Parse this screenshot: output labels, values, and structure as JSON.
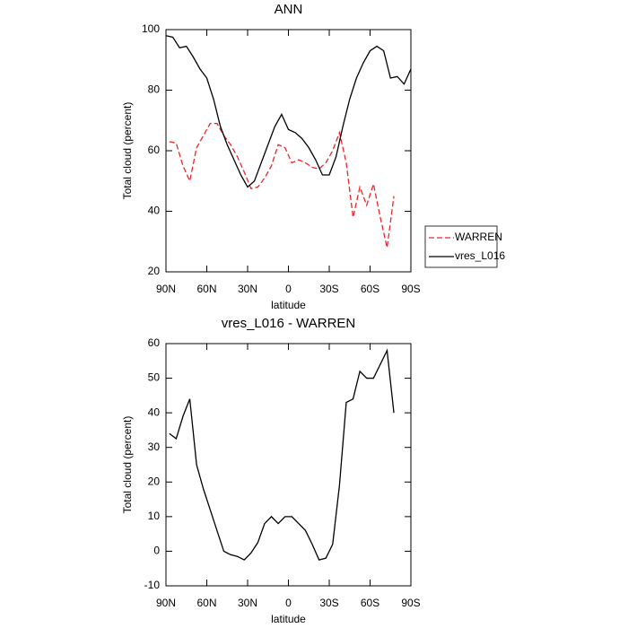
{
  "chart_data": [
    {
      "type": "line",
      "title": "ANN",
      "x_label": "latitude",
      "y_label": "Total cloud (percent)",
      "xlim": [
        90,
        -90
      ],
      "xticks": [
        {
          "value": 90,
          "label": "90N"
        },
        {
          "value": 60,
          "label": "60N"
        },
        {
          "value": 30,
          "label": "30N"
        },
        0,
        {
          "value": -30,
          "label": "30S"
        },
        {
          "value": -60,
          "label": "60S"
        },
        {
          "value": -90,
          "label": "90S"
        }
      ],
      "ylim": [
        20,
        100
      ],
      "yticks": [
        20,
        40,
        60,
        80,
        100
      ],
      "legend": "outside-right",
      "series": [
        {
          "name": "WARREN",
          "color": "#e8262b",
          "style": "dashed",
          "x": [
            87.5,
            82.5,
            77.5,
            72.5,
            67.5,
            62.5,
            57.5,
            52.5,
            47.5,
            42.5,
            37.5,
            32.5,
            27.5,
            22.5,
            17.5,
            12.5,
            7.5,
            2.5,
            -2.5,
            -7.5,
            -12.5,
            -17.5,
            -22.5,
            -27.5,
            -32.5,
            -37.5,
            -42.5,
            -47.5,
            -52.5,
            -57.5,
            -62.5,
            -67.5,
            -72.5,
            -77.5
          ],
          "values": [
            63,
            62.5,
            55,
            50,
            61,
            65,
            69,
            69,
            65,
            62,
            58,
            53,
            47.5,
            48,
            51,
            55,
            62,
            61,
            56,
            57,
            56,
            54.5,
            54,
            56,
            60,
            66,
            56,
            38,
            48,
            42,
            49,
            38,
            28,
            45
          ]
        },
        {
          "name": "vres_L016",
          "color": "#000000",
          "style": "solid",
          "x": [
            90,
            85,
            80,
            75,
            70,
            65,
            60,
            55,
            50,
            45,
            40,
            35,
            30,
            25,
            20,
            15,
            10,
            5,
            0,
            -5,
            -10,
            -15,
            -20,
            -25,
            -30,
            -35,
            -40,
            -45,
            -50,
            -55,
            -60,
            -65,
            -70,
            -75,
            -80,
            -85,
            -90
          ],
          "values": [
            98,
            97.5,
            94,
            94.5,
            91,
            87,
            84,
            77,
            68,
            62,
            57,
            52,
            48,
            50,
            56,
            62,
            68,
            72,
            67,
            66,
            64,
            61,
            57,
            52,
            52,
            58,
            68,
            77,
            84,
            89,
            93,
            94.5,
            93,
            84,
            84.5,
            82,
            87
          ]
        }
      ]
    },
    {
      "type": "line",
      "title": "vres_L016 - WARREN",
      "x_label": "latitude",
      "y_label": "Total cloud (percent)",
      "xlim": [
        90,
        -90
      ],
      "xticks": [
        {
          "value": 90,
          "label": "90N"
        },
        {
          "value": 60,
          "label": "60N"
        },
        {
          "value": 30,
          "label": "30N"
        },
        0,
        {
          "value": -30,
          "label": "30S"
        },
        {
          "value": -60,
          "label": "60S"
        },
        {
          "value": -90,
          "label": "90S"
        }
      ],
      "ylim": [
        -10,
        60
      ],
      "yticks": [
        -10,
        0,
        10,
        20,
        30,
        40,
        50,
        60
      ],
      "series": [
        {
          "color": "#000000",
          "style": "solid",
          "x": [
            87.5,
            82.5,
            77.5,
            72.5,
            67.5,
            62.5,
            57.5,
            52.5,
            47.5,
            42.5,
            37.5,
            32.5,
            27.5,
            22.5,
            17.5,
            12.5,
            7.5,
            2.5,
            -2.5,
            -7.5,
            -12.5,
            -17.5,
            -22.5,
            -27.5,
            -32.5,
            -37.5,
            -42.5,
            -47.5,
            -52.5,
            -57.5,
            -62.5,
            -67.5,
            -72.5,
            -77.5
          ],
          "values": [
            34,
            32.5,
            39,
            44,
            25,
            18,
            12,
            6,
            0,
            -1,
            -1.5,
            -2.5,
            -0.5,
            2.5,
            8,
            10,
            8,
            10,
            10,
            8,
            6,
            2,
            -2.5,
            -2,
            2,
            19,
            43,
            44,
            52,
            50,
            50,
            54,
            58,
            40
          ]
        }
      ]
    }
  ]
}
